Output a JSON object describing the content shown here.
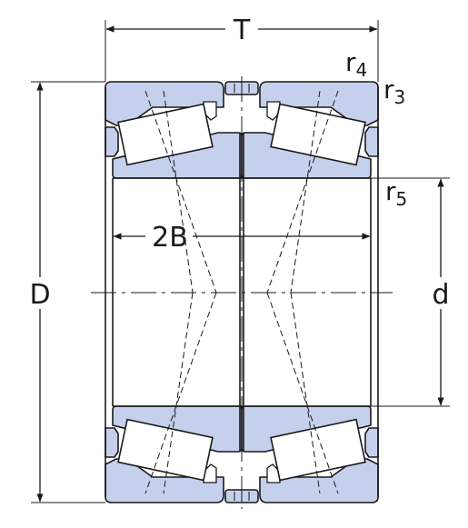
{
  "labels": {
    "T": "T",
    "D": "D",
    "d": "d",
    "B": "2B",
    "r4": {
      "base": "r",
      "sub": "4"
    },
    "r3": {
      "base": "r",
      "sub": "3"
    },
    "r5": {
      "base": "r",
      "sub": "5"
    }
  },
  "colors": {
    "ring_fill": "#c5d0ec",
    "line": "#1a1a1a",
    "background": "#ffffff"
  }
}
